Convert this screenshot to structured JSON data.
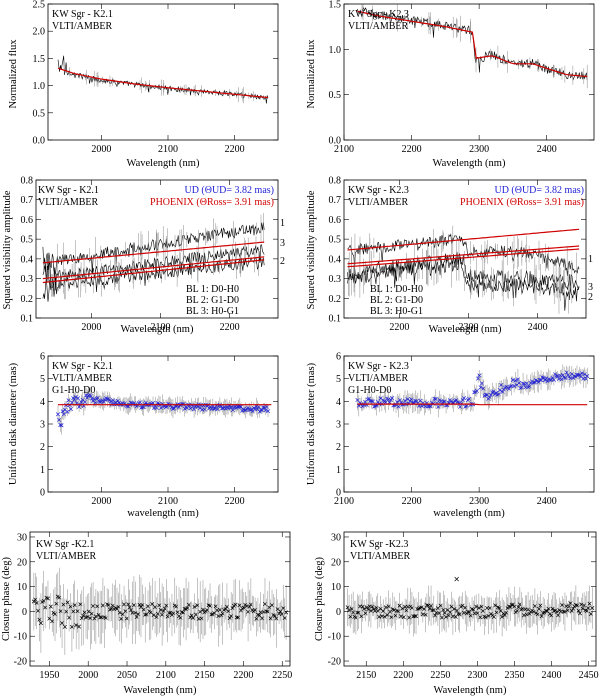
{
  "colors": {
    "observed": "#000000",
    "model": "#d00000",
    "ud_text": "#1f1fd6",
    "ud_points": "#1f1fd6",
    "errorbars": "#8a8a8a"
  },
  "chart_data": [
    {
      "id": "flux-k21",
      "type": "line",
      "annotation": [
        "KW Sgr - K2.1",
        "VLTI/AMBER"
      ],
      "xlabel": "Wavelength (nm)",
      "ylabel": "Normalized flux",
      "xlim": [
        1920,
        2265
      ],
      "ylim": [
        0.0,
        2.5
      ],
      "xticks": [
        2000,
        2100,
        2200
      ],
      "yticks": [
        0.0,
        0.5,
        1.0,
        1.5,
        2.0,
        2.5
      ],
      "ytick_labels": [
        "0.0",
        "0.5",
        "1.0",
        "1.5",
        "2.0",
        "2.5"
      ],
      "series": [
        {
          "name": "Observed",
          "style": "noisy-line",
          "color": "#000000",
          "x": [
            1935,
            1945,
            1960,
            1980,
            2000,
            2050,
            2100,
            2150,
            2200,
            2250
          ],
          "y": [
            1.45,
            1.3,
            1.2,
            1.15,
            1.1,
            1.02,
            0.95,
            0.9,
            0.84,
            0.78
          ],
          "noise": 0.05
        },
        {
          "name": "PHOENIX model",
          "style": "line",
          "color": "#d00000",
          "x": [
            1935,
            1960,
            2000,
            2050,
            2100,
            2150,
            2200,
            2250
          ],
          "y": [
            1.32,
            1.22,
            1.12,
            1.03,
            0.96,
            0.9,
            0.84,
            0.78
          ]
        }
      ]
    },
    {
      "id": "flux-k23",
      "type": "line",
      "annotation": [
        "KW Sgr - K2.3",
        "VLTI/AMBER"
      ],
      "xlabel": "Wavelength (nm)",
      "ylabel": "Normalized flux",
      "xlim": [
        2100,
        2470
      ],
      "ylim": [
        0.0,
        1.5
      ],
      "xticks": [
        2100,
        2200,
        2300,
        2400
      ],
      "yticks": [
        0.0,
        0.5,
        1.0,
        1.5
      ],
      "ytick_labels": [
        "0.0",
        "0.5",
        "1.0",
        "1.5"
      ],
      "series": [
        {
          "name": "Observed",
          "style": "noisy-line",
          "color": "#000000",
          "x": [
            2120,
            2150,
            2200,
            2250,
            2290,
            2294,
            2320,
            2350,
            2380,
            2400,
            2430,
            2460
          ],
          "y": [
            1.43,
            1.38,
            1.32,
            1.26,
            1.2,
            0.88,
            0.95,
            0.83,
            0.85,
            0.78,
            0.72,
            0.7
          ],
          "noise": 0.05
        },
        {
          "name": "PHOENIX model",
          "style": "line",
          "color": "#d00000",
          "x": [
            2120,
            2150,
            2200,
            2250,
            2290,
            2294,
            2320,
            2350,
            2380,
            2400,
            2430,
            2460
          ],
          "y": [
            1.42,
            1.37,
            1.31,
            1.25,
            1.19,
            0.9,
            0.93,
            0.84,
            0.84,
            0.79,
            0.72,
            0.7
          ]
        }
      ]
    },
    {
      "id": "vis-k21",
      "type": "line",
      "annotation": [
        "KW Sgr - K2.1",
        "VLTI/AMBER"
      ],
      "legend_ud": "UD (ΘUD= 3.82 mas)",
      "legend_phoenix": "PHOENIX (ΘRoss= 3.91 mas)",
      "baselines": [
        "BL 1: D0-H0",
        "BL 2: G1-D0",
        "BL 3: H0-G1"
      ],
      "line_labels": [
        "1",
        "3",
        "2"
      ],
      "xlabel": "Wavelength (nm)",
      "ylabel": "Squared visibility amplitude",
      "xlim": [
        1920,
        2270
      ],
      "ylim": [
        0.1,
        0.8
      ],
      "xticks": [
        2000,
        2100,
        2200
      ],
      "yticks": [
        0.1,
        0.2,
        0.3,
        0.4,
        0.5,
        0.6,
        0.7,
        0.8
      ],
      "ytick_labels": [
        "0.1",
        "0.2",
        "0.3",
        "0.4",
        "0.5",
        "0.6",
        "0.7",
        "0.8"
      ],
      "series": [
        {
          "name": "BL 1 observed",
          "style": "noisy-line",
          "color": "#000000",
          "x": [
            1930,
            2250
          ],
          "y": [
            0.38,
            0.56
          ],
          "noise": 0.03
        },
        {
          "name": "BL 3 observed",
          "style": "noisy-line",
          "color": "#000000",
          "x": [
            1930,
            2250
          ],
          "y": [
            0.3,
            0.45
          ],
          "noise": 0.03
        },
        {
          "name": "BL 2 observed",
          "style": "noisy-line",
          "color": "#000000",
          "x": [
            1930,
            2250
          ],
          "y": [
            0.26,
            0.39
          ],
          "noise": 0.03
        },
        {
          "name": "BL 1 model",
          "style": "line",
          "color": "#d00000",
          "x": [
            1930,
            2250
          ],
          "y": [
            0.38,
            0.485
          ]
        },
        {
          "name": "BL 3 model",
          "style": "line",
          "color": "#d00000",
          "x": [
            1930,
            2250
          ],
          "y": [
            0.3,
            0.41
          ]
        },
        {
          "name": "BL 2 model",
          "style": "line",
          "color": "#d00000",
          "x": [
            1930,
            2250
          ],
          "y": [
            0.28,
            0.395
          ]
        }
      ]
    },
    {
      "id": "vis-k23",
      "type": "line",
      "annotation": [
        "KW Sgr - K2.3",
        "VLTI/AMBER"
      ],
      "legend_ud": "UD (ΘUD= 3.82 mas)",
      "legend_phoenix": "PHOENIX (ΘRoss= 3.91 mas)",
      "baselines": [
        "BL 1: D0-H0",
        "BL 2: G1-D0",
        "BL 3: H0-G1"
      ],
      "line_labels": [
        "1",
        "3",
        "2"
      ],
      "xlabel": "Wavelength (nm)",
      "ylabel": "Squared visibility amplitude",
      "xlim": [
        2120,
        2470
      ],
      "ylim": [
        0.1,
        0.8
      ],
      "xticks": [
        2200,
        2300,
        2400
      ],
      "yticks": [
        0.1,
        0.2,
        0.3,
        0.4,
        0.5,
        0.6,
        0.7,
        0.8
      ],
      "ytick_labels": [
        "0.1",
        "0.2",
        "0.3",
        "0.4",
        "0.5",
        "0.6",
        "0.7",
        "0.8"
      ],
      "series": [
        {
          "name": "BL 1 observed",
          "style": "noisy-line",
          "color": "#000000",
          "x": [
            2125,
            2200,
            2290,
            2300,
            2350,
            2400,
            2460
          ],
          "y": [
            0.44,
            0.47,
            0.5,
            0.43,
            0.44,
            0.42,
            0.35
          ],
          "noise": 0.03
        },
        {
          "name": "BL 3 observed",
          "style": "noisy-line",
          "color": "#000000",
          "x": [
            2125,
            2200,
            2290,
            2300,
            2350,
            2400,
            2460
          ],
          "y": [
            0.32,
            0.36,
            0.4,
            0.32,
            0.3,
            0.3,
            0.28
          ],
          "noise": 0.04
        },
        {
          "name": "BL 2 observed",
          "style": "noisy-line",
          "color": "#000000",
          "x": [
            2125,
            2200,
            2290,
            2300,
            2350,
            2400,
            2460
          ],
          "y": [
            0.3,
            0.34,
            0.38,
            0.28,
            0.27,
            0.26,
            0.22
          ],
          "noise": 0.04
        },
        {
          "name": "BL 1 model",
          "style": "line",
          "color": "#d00000",
          "x": [
            2125,
            2460
          ],
          "y": [
            0.445,
            0.55
          ]
        },
        {
          "name": "BL 3 model",
          "style": "line",
          "color": "#d00000",
          "x": [
            2125,
            2460
          ],
          "y": [
            0.375,
            0.465
          ]
        },
        {
          "name": "BL 2 model",
          "style": "line",
          "color": "#d00000",
          "x": [
            2125,
            2460
          ],
          "y": [
            0.36,
            0.45
          ]
        }
      ]
    },
    {
      "id": "ud-k21",
      "type": "scatter",
      "annotation": [
        "KW Sgr - K2.1",
        "VLTI/AMBER",
        "G1-H0-D0"
      ],
      "xlabel": "wavelength (nm)",
      "ylabel": "Uniform disk diameter (mas)",
      "xlim": [
        1920,
        2265
      ],
      "ylim": [
        0,
        6
      ],
      "xticks": [
        2000,
        2100,
        2200
      ],
      "yticks": [
        0,
        1,
        2,
        3,
        4,
        5,
        6
      ],
      "ytick_labels": [
        "0",
        "1",
        "2",
        "3",
        "4",
        "5",
        "6"
      ],
      "series": [
        {
          "name": "UD diameter",
          "style": "noisy-points",
          "color": "#1f1fd6",
          "x": [
            1935,
            1940,
            1945,
            1955,
            1970,
            2000,
            2050,
            2100,
            2150,
            2200,
            2250
          ],
          "y": [
            3.3,
            3.1,
            3.7,
            3.9,
            4.05,
            4.05,
            3.85,
            3.8,
            3.75,
            3.7,
            3.65
          ],
          "noise": 0.12,
          "err": 0.3
        },
        {
          "name": "PHOENIX model",
          "style": "line",
          "color": "#d00000",
          "x": [
            1935,
            2255
          ],
          "y": [
            3.85,
            3.85
          ]
        }
      ]
    },
    {
      "id": "ud-k23",
      "type": "scatter",
      "annotation": [
        "KW Sgr - K2.3",
        "VLTI/AMBER",
        "G1-H0-D0"
      ],
      "xlabel": "wavelength (nm)",
      "ylabel": "Uniform disk diameter (mas)",
      "xlim": [
        2100,
        2470
      ],
      "ylim": [
        0,
        6
      ],
      "xticks": [
        2100,
        2200,
        2300,
        2400
      ],
      "yticks": [
        0,
        1,
        2,
        3,
        4,
        5,
        6
      ],
      "ytick_labels": [
        "0",
        "1",
        "2",
        "3",
        "4",
        "5",
        "6"
      ],
      "series": [
        {
          "name": "UD diameter",
          "style": "noisy-points",
          "color": "#1f1fd6",
          "x": [
            2120,
            2200,
            2290,
            2300,
            2310,
            2330,
            2350,
            2380,
            2400,
            2430,
            2460
          ],
          "y": [
            3.95,
            3.95,
            3.95,
            5.0,
            4.2,
            4.5,
            4.8,
            4.7,
            5.0,
            5.1,
            5.2
          ],
          "noise": 0.2,
          "err": 0.35
        },
        {
          "name": "PHOENIX model",
          "style": "line",
          "color": "#d00000",
          "x": [
            2120,
            2290,
            2300,
            2460
          ],
          "y": [
            3.88,
            3.88,
            3.85,
            3.85
          ]
        }
      ]
    },
    {
      "id": "cp-k21",
      "type": "scatter",
      "annotation": [
        "KW Sgr -K2.1",
        "VLTI/AMBER"
      ],
      "xlabel": "Wavelength (nm)",
      "ylabel": "Closure phase (deg)",
      "xlim": [
        1925,
        2260
      ],
      "ylim": [
        -22,
        32
      ],
      "xticks": [
        1950,
        2000,
        2050,
        2100,
        2150,
        2200,
        2250
      ],
      "yticks": [
        -20,
        -10,
        0,
        10,
        20,
        30
      ],
      "ytick_labels": [
        "-20",
        "-10",
        "0",
        "10",
        "20",
        "30"
      ],
      "series": [
        {
          "name": "Closure phase",
          "style": "noisy-points",
          "color": "#000000",
          "x": [
            1930,
            2000,
            2050,
            2255
          ],
          "y": [
            0,
            0,
            0,
            0
          ],
          "noise": 3.0,
          "err": 9.0
        }
      ]
    },
    {
      "id": "cp-k23",
      "type": "scatter",
      "annotation": [
        "KW Sgr -K2.3",
        "VLTI/AMBER"
      ],
      "xlabel": "Wavelength (nm)",
      "ylabel": "Closure phase (deg)",
      "xlim": [
        2120,
        2460
      ],
      "ylim": [
        -22,
        32
      ],
      "xticks": [
        2150,
        2200,
        2250,
        2300,
        2350,
        2400,
        2450
      ],
      "yticks": [
        -20,
        -10,
        0,
        10,
        20,
        30
      ],
      "ytick_labels": [
        "-20",
        "-10",
        "0",
        "10",
        "20",
        "30"
      ],
      "outliers": [
        {
          "x": 2272,
          "y": 13
        }
      ],
      "series": [
        {
          "name": "Closure phase",
          "style": "noisy-points",
          "color": "#000000",
          "x": [
            2125,
            2300,
            2455
          ],
          "y": [
            0,
            0,
            1
          ],
          "noise": 2.5,
          "err": 6.0
        }
      ]
    }
  ]
}
